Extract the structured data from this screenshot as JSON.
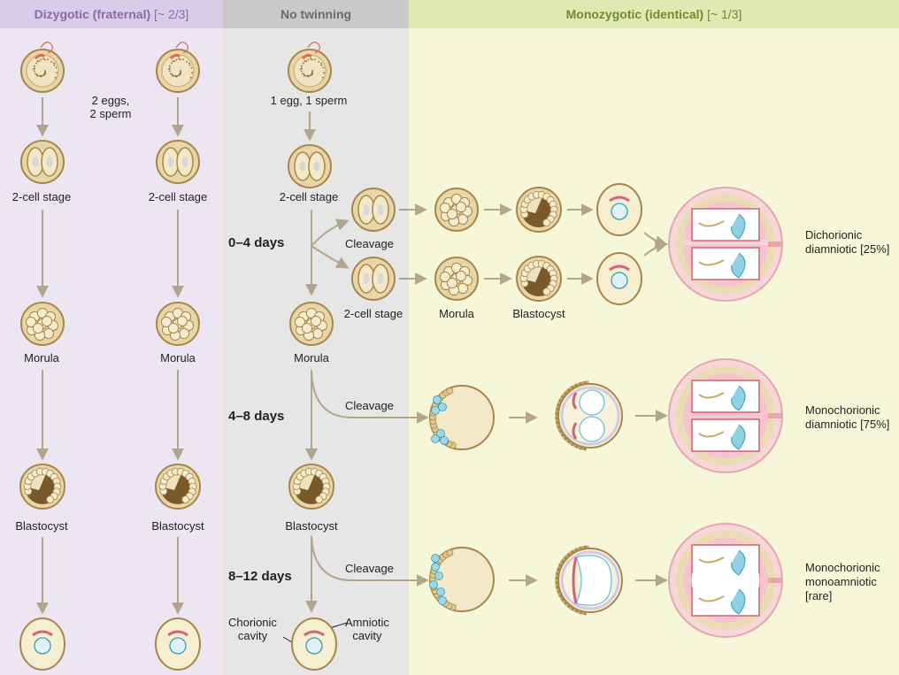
{
  "headers": {
    "dizygotic": "Dizygotic (fraternal)",
    "dizygotic_ratio": "[~ 2/3]",
    "none": "No twinning",
    "monozygotic": "Monozygotic (identical)",
    "monozygotic_ratio": "[~ 1/3]"
  },
  "dizygotic": {
    "fertilization": "2 eggs,\n2 sperm",
    "two_cell_left": "2-cell stage",
    "two_cell_right": "2-cell stage",
    "morula_left": "Morula",
    "morula_right": "Morula",
    "blastocyst_left": "Blastocyst",
    "blastocyst_right": "Blastocyst"
  },
  "no_twinning": {
    "fertilization": "1 egg, 1 sperm",
    "two_cell": "2-cell stage",
    "morula": "Morula",
    "blastocyst": "Blastocyst",
    "chorionic_cavity": "Chorionic\ncavity",
    "amniotic_cavity": "Amniotic\ncavity"
  },
  "timing": {
    "row1": "0–4 days",
    "row2": "4–8 days",
    "row3": "8–12 days"
  },
  "monozygotic": {
    "cleavage_1": "Cleavage",
    "two_cell_split": "2-cell stage",
    "morula": "Morula",
    "blastocyst": "Blastocyst",
    "cleavage_2": "Cleavage",
    "cleavage_3": "Cleavage"
  },
  "outcomes": {
    "dichorionic": {
      "name": "Dichorionic\ndiamniotic",
      "pct": "[25%]"
    },
    "mono_di": {
      "name": "Monochorionic\ndiamniotic",
      "pct": "[75%]"
    },
    "mono_mono": {
      "name": "Monochorionic\nmonoamniotic",
      "pct": "[rare]"
    }
  },
  "colors": {
    "dizygotic_bg": "#ebe6f2",
    "dizygotic_header": "#d8cde6",
    "dizygotic_header_text": "#8a6aa6",
    "none_bg": "#e6e6e6",
    "none_header": "#c9c9c9",
    "none_header_text": "#6a6a6a",
    "mono_bg": "#f6f7d9",
    "mono_header": "#e1e9b3",
    "mono_header_text": "#6f8b2a",
    "arrow": "#b3a48c",
    "cell_gold": "#c9a86a",
    "placenta_pink": "#f3c6cc",
    "fetus_blue": "#8fd1e3"
  }
}
